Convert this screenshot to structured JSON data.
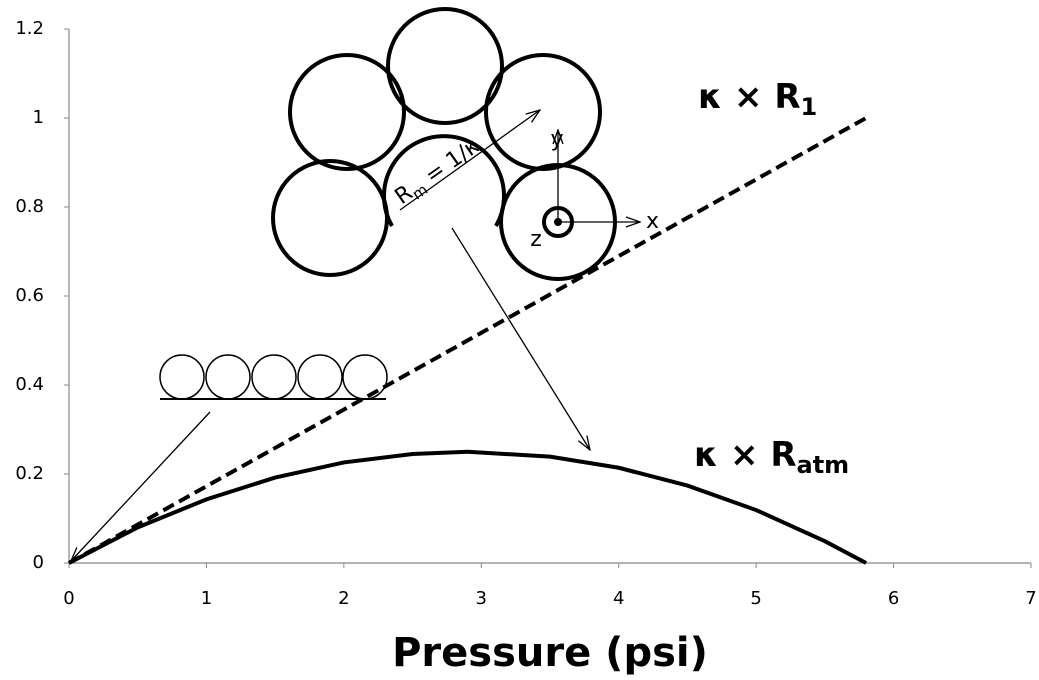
{
  "chart_data": {
    "type": "line",
    "xlabel": "Pressure (psi)",
    "xlim": [
      0,
      7
    ],
    "xticks": [
      0,
      1,
      2,
      3,
      4,
      5,
      6,
      7
    ],
    "ylim": [
      0,
      1.2
    ],
    "yticks": [
      0,
      0.2,
      0.4,
      0.6,
      0.8,
      1,
      1.2
    ],
    "grid": false,
    "series": [
      {
        "color": "#000000",
        "dashed": true,
        "x": [
          0,
          5.8
        ],
        "values": [
          0,
          1
        ]
      },
      {
        "color": "#000000",
        "dashed": false,
        "x": [
          0,
          0.5,
          1,
          1.5,
          2,
          2.5,
          2.9,
          3.5,
          4,
          4.5,
          5,
          5.5,
          5.8
        ],
        "values": [
          0,
          0.08,
          0.143,
          0.192,
          0.226,
          0.245,
          0.25,
          0.239,
          0.214,
          0.174,
          0.119,
          0.049,
          0
        ]
      }
    ],
    "annotations": [
      {
        "text": "κ × R",
        "sub": "1"
      },
      {
        "text": "κ × R",
        "sub": "atm"
      }
    ],
    "diagram_labels": {
      "radius": "R",
      "radius_sub": "m",
      "radius_rest": " = 1/κ",
      "x": "x",
      "y": "y",
      "z": "z"
    }
  }
}
